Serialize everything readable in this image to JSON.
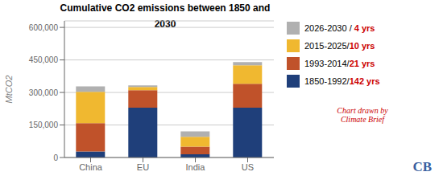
{
  "chart_data": {
    "type": "bar",
    "stacked": true,
    "title": "Cumulative CO2 emissions between 1850 and 2030",
    "ylabel": "MtCO2",
    "categories": [
      "China",
      "EU",
      "India",
      "US"
    ],
    "series": [
      {
        "name": "1850-1992/",
        "annotation": "142 yrs",
        "color": "#1f3f7a",
        "values": [
          28000,
          230000,
          15000,
          230000
        ]
      },
      {
        "name": "1993-2014/",
        "annotation": "21 yrs",
        "color": "#c0522a",
        "values": [
          130000,
          80000,
          35000,
          110000
        ]
      },
      {
        "name": "2015-2025/",
        "annotation": "10 yrs",
        "color": "#f0b830",
        "values": [
          145000,
          15000,
          45000,
          85000
        ]
      },
      {
        "name": "2026-2030 / ",
        "annotation": "4 yrs",
        "color": "#b0b0b0",
        "values": [
          25000,
          8000,
          25000,
          15000
        ]
      }
    ],
    "ylim": [
      0,
      630000
    ],
    "yticks": [
      0,
      {
        "value": 150000,
        "label": "150,000"
      },
      {
        "value": 300000,
        "label": "300,000"
      },
      {
        "value": 450000,
        "label": "450,000"
      },
      {
        "value": 600000,
        "label": "600,000"
      }
    ],
    "grid": true,
    "annotations": [
      {
        "text": "Chart drawn by\nClimate Brief",
        "color": "#cc0000"
      },
      {
        "text": "CB",
        "color": "#3a5fa0"
      }
    ]
  }
}
